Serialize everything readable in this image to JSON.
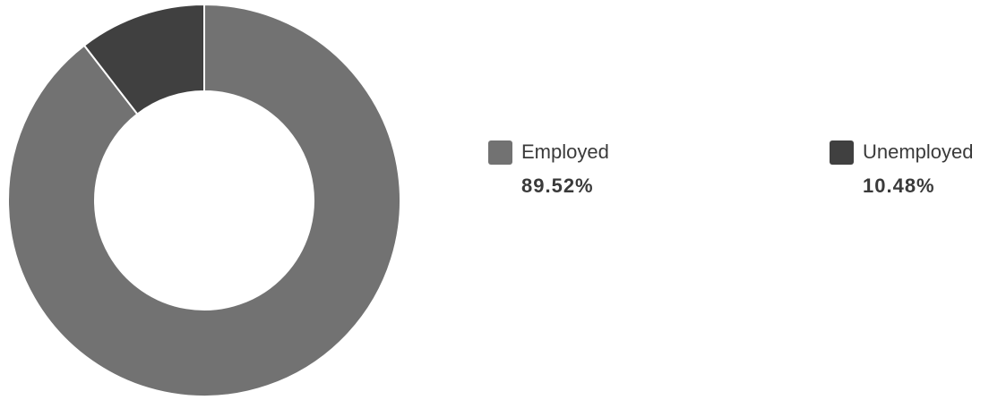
{
  "chart_data": {
    "type": "pie",
    "variant": "donut",
    "categories": [
      "Employed",
      "Unemployed"
    ],
    "values": [
      89.52,
      10.48
    ],
    "value_labels": [
      "89.52%",
      "10.48%"
    ],
    "colors": [
      "#727272",
      "#404040"
    ],
    "legend_placement": "right",
    "title": ""
  },
  "legend": [
    {
      "label": "Employed",
      "value": "89.52%",
      "color": "#727272"
    },
    {
      "label": "Unemployed",
      "value": "10.48%",
      "color": "#404040"
    }
  ]
}
